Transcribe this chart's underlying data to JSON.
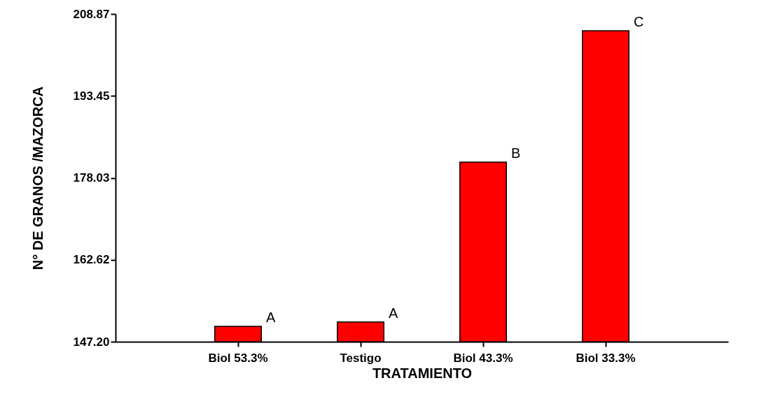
{
  "chart_data": {
    "type": "bar",
    "xlabel": "TRATAMIENTO",
    "ylabel": "N° DE GRANOS /MAZORCA",
    "categories": [
      "Biol 53.3%",
      "Testigo",
      "Biol 43.3%",
      "Biol 33.3%"
    ],
    "values": [
      150.1,
      150.9,
      181.0,
      205.7
    ],
    "color": "#ff0000",
    "ylim": [
      147.2,
      208.87
    ],
    "yticks": [
      {
        "value": 147.2,
        "label": "147.20"
      },
      208.87,
      193.45,
      178.03,
      162.62
    ],
    "grid": false,
    "annotations": [
      {
        "text": "A",
        "x": "Biol 53.3%",
        "y": 150.1
      },
      {
        "text": "A",
        "x": "Testigo",
        "y": 150.9
      },
      {
        "text": "B",
        "x": "Biol 43.3%",
        "y": 181.0
      },
      {
        "text": "C",
        "x": "Biol 33.3%",
        "y": 205.7
      }
    ]
  }
}
